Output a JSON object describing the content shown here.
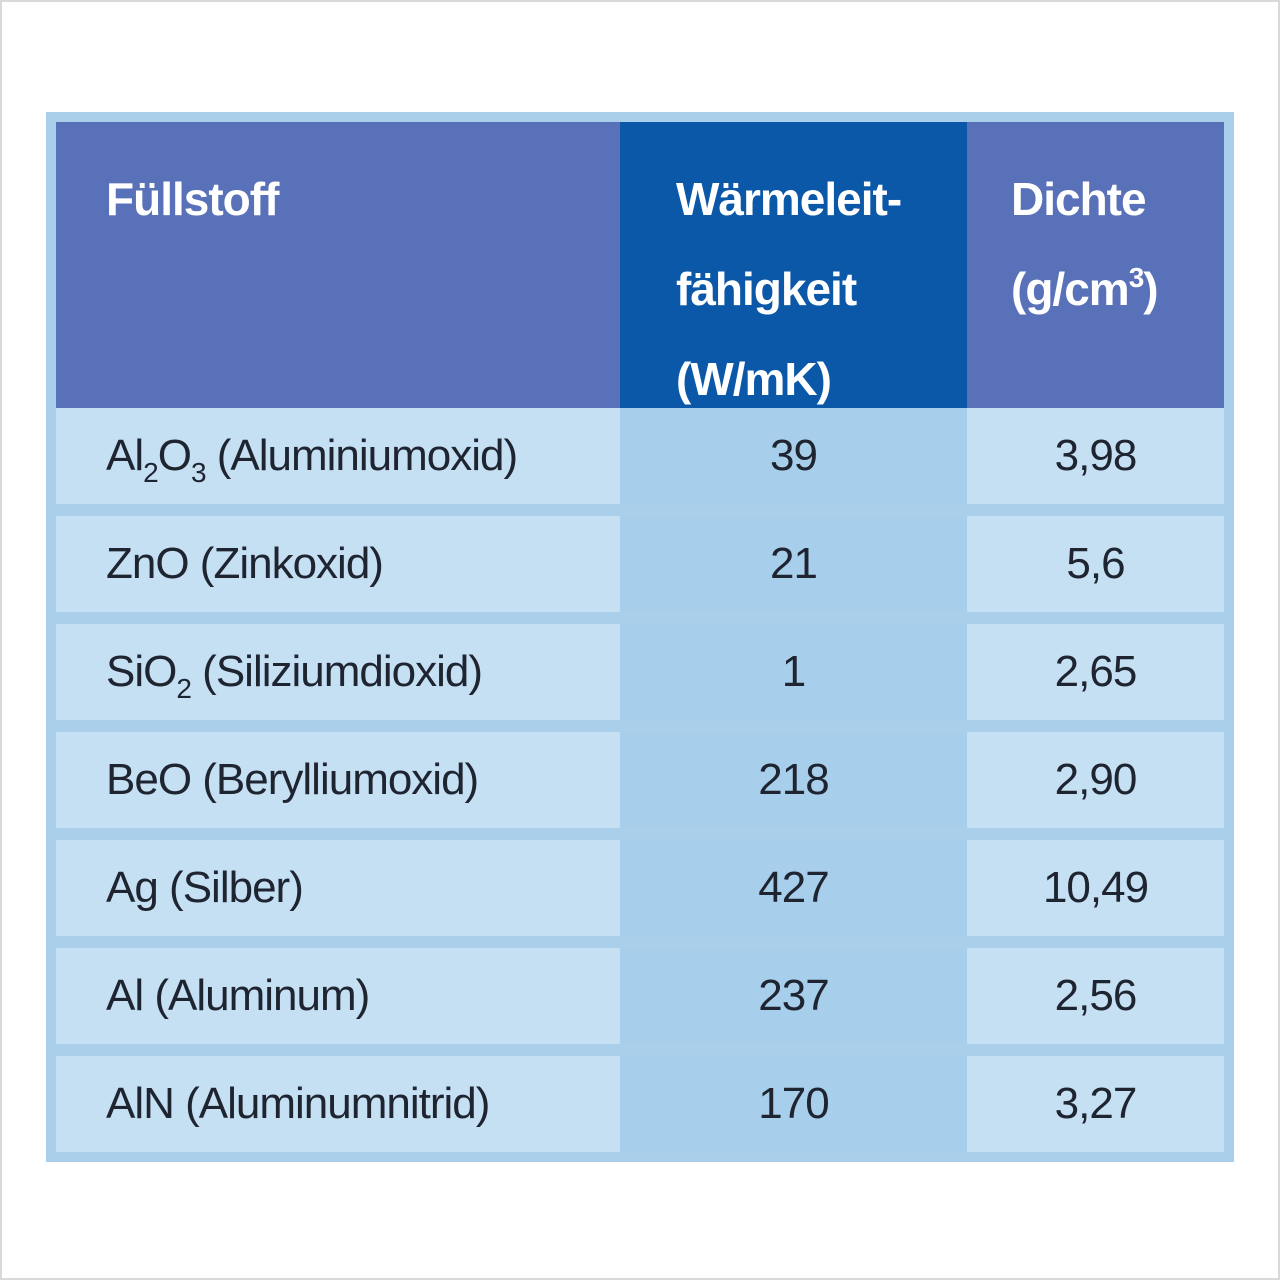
{
  "chart_data": {
    "type": "table",
    "title": "",
    "columns": [
      "Füllstoff",
      "Wärmeleitfähigkeit (W/mK)",
      "Dichte (g/cm3)"
    ],
    "rows": [
      [
        "Al2O3 (Aluminiumoxid)",
        39,
        "3,98"
      ],
      [
        "ZnO (Zinkoxid)",
        21,
        "5,6"
      ],
      [
        "SiO2 (Siliziumdioxid)",
        1,
        "2,65"
      ],
      [
        "BeO (Berylliumoxid)",
        218,
        "2,90"
      ],
      [
        "Ag (Silber)",
        427,
        "10,49"
      ],
      [
        "Al (Aluminum)",
        237,
        "2,56"
      ],
      [
        "AlN (Aluminumnitrid)",
        170,
        "3,27"
      ]
    ]
  },
  "table": {
    "header": {
      "filler": "Füllstoff",
      "conductivity_lines": [
        [
          {
            "t": "Wärmeleit-"
          }
        ],
        [
          {
            "t": "fähigkeit"
          }
        ],
        [
          {
            "t": "(W/mK)"
          }
        ]
      ],
      "density_lines": [
        [
          {
            "t": "Dichte"
          }
        ],
        [
          {
            "t": "(g/cm"
          },
          {
            "t": "3",
            "sup": true
          },
          {
            "t": ")"
          }
        ]
      ]
    },
    "rows": [
      {
        "material": [
          {
            "t": "Al"
          },
          {
            "t": "2",
            "sub": true
          },
          {
            "t": "O"
          },
          {
            "t": "3",
            "sub": true
          },
          {
            "t": " (Aluminiumoxid)"
          }
        ],
        "conductivity": "39",
        "density": "3,98"
      },
      {
        "material": [
          {
            "t": "ZnO (Zinkoxid)"
          }
        ],
        "conductivity": "21",
        "density": "5,6"
      },
      {
        "material": [
          {
            "t": "SiO"
          },
          {
            "t": "2",
            "sub": true
          },
          {
            "t": " (Siliziumdioxid)"
          }
        ],
        "conductivity": "1",
        "density": "2,65"
      },
      {
        "material": [
          {
            "t": "BeO (Berylliumoxid)"
          }
        ],
        "conductivity": "218",
        "density": "2,90"
      },
      {
        "material": [
          {
            "t": "Ag (Silber)"
          }
        ],
        "conductivity": "427",
        "density": "10,49"
      },
      {
        "material": [
          {
            "t": "Al (Aluminum)"
          }
        ],
        "conductivity": "237",
        "density": "2,56"
      },
      {
        "material": [
          {
            "t": "AlN (Aluminumnitrid)"
          }
        ],
        "conductivity": "170",
        "density": "3,27"
      }
    ]
  },
  "colors": {
    "header_bg": "#5971B8",
    "header_highlight_bg": "#0B57A8",
    "row_bg": "#C5DFF3",
    "row_highlight_bg": "#A7CEEA",
    "table_border": "#A9CFEA",
    "header_text": "#FFFFFF",
    "body_text": "#1E2430"
  }
}
